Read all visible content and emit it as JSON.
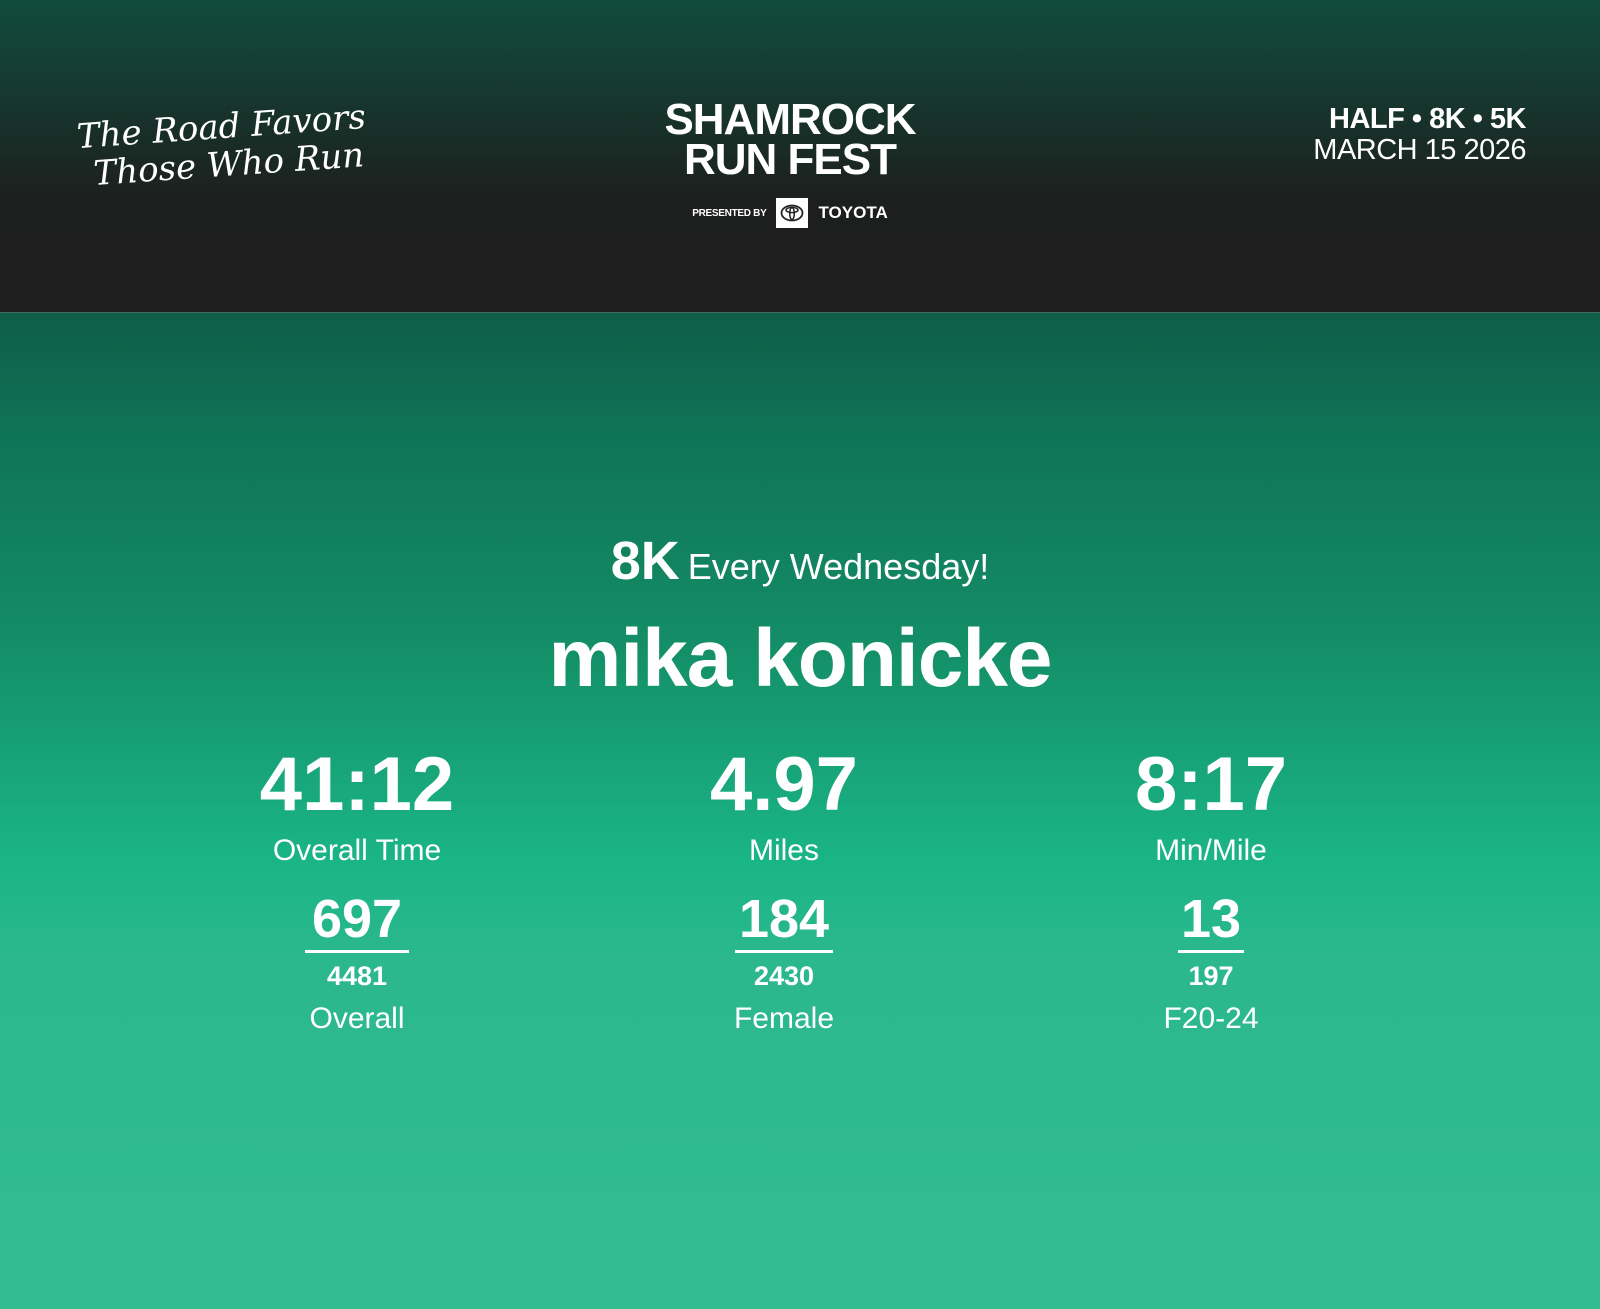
{
  "header": {
    "tagline": [
      "The Road Favors",
      "Those Who Run"
    ],
    "logo": {
      "line1": "SHAMROCK",
      "line2": "RUN FEST",
      "presented_by": "PRESENTED BY",
      "sponsor": "TOYOTA"
    },
    "distances": "HALF • 8K • 5K",
    "date": "MARCH 15 2026"
  },
  "result": {
    "distance": "8K",
    "team": "Every Wednesday!",
    "runner_name": "mika konicke",
    "stats": [
      {
        "value": "41:12",
        "label": "Overall Time",
        "place": "697",
        "total": "4481",
        "category": "Overall"
      },
      {
        "value": "4.97",
        "label": "Miles",
        "place": "184",
        "total": "2430",
        "category": "Female"
      },
      {
        "value": "8:17",
        "label": "Min/Mile",
        "place": "13",
        "total": "197",
        "category": "F20-24"
      }
    ]
  }
}
